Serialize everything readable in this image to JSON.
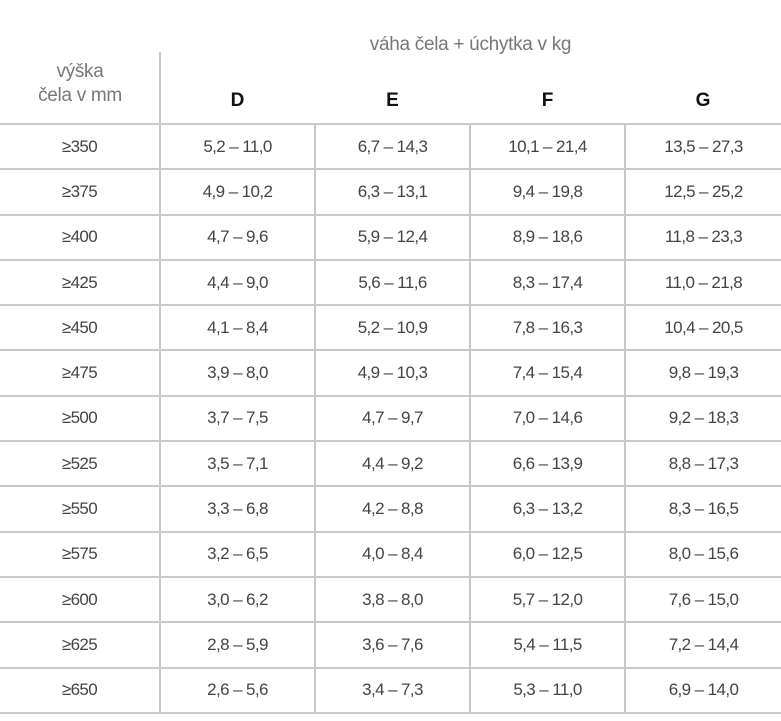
{
  "header": {
    "group_title": "váha čela + úchytka v kg",
    "row_header_line1": "výška",
    "row_header_line2": "čela v mm",
    "columns": [
      "D",
      "E",
      "F",
      "G"
    ]
  },
  "rows": [
    {
      "height": "≥350",
      "values": [
        "5,2 – 11,0",
        "6,7 – 14,3",
        "10,1 – 21,4",
        "13,5 – 27,3"
      ]
    },
    {
      "height": "≥375",
      "values": [
        "4,9 – 10,2",
        "6,3 – 13,1",
        "9,4 – 19,8",
        "12,5 – 25,2"
      ]
    },
    {
      "height": "≥400",
      "values": [
        "4,7 – 9,6",
        "5,9 – 12,4",
        "8,9 – 18,6",
        "11,8 – 23,3"
      ]
    },
    {
      "height": "≥425",
      "values": [
        "4,4 – 9,0",
        "5,6 – 11,6",
        "8,3 – 17,4",
        "11,0 – 21,8"
      ]
    },
    {
      "height": "≥450",
      "values": [
        "4,1 – 8,4",
        "5,2 – 10,9",
        "7,8 – 16,3",
        "10,4 – 20,5"
      ]
    },
    {
      "height": "≥475",
      "values": [
        "3,9 – 8,0",
        "4,9 – 10,3",
        "7,4 – 15,4",
        "9,8 – 19,3"
      ]
    },
    {
      "height": "≥500",
      "values": [
        "3,7 – 7,5",
        "4,7 – 9,7",
        "7,0 – 14,6",
        "9,2 – 18,3"
      ]
    },
    {
      "height": "≥525",
      "values": [
        "3,5 – 7,1",
        "4,4 – 9,2",
        "6,6 – 13,9",
        "8,8 – 17,3"
      ]
    },
    {
      "height": "≥550",
      "values": [
        "3,3 – 6,8",
        "4,2 – 8,8",
        "6,3 – 13,2",
        "8,3 – 16,5"
      ]
    },
    {
      "height": "≥575",
      "values": [
        "3,2 – 6,5",
        "4,0 – 8,4",
        "6,0 – 12,5",
        "8,0 – 15,6"
      ]
    },
    {
      "height": "≥600",
      "values": [
        "3,0 – 6,2",
        "3,8 – 8,0",
        "5,7 – 12,0",
        "7,6 – 15,0"
      ]
    },
    {
      "height": "≥625",
      "values": [
        "2,8 – 5,9",
        "3,6 – 7,6",
        "5,4 – 11,5",
        "7,2 – 14,4"
      ]
    },
    {
      "height": "≥650",
      "values": [
        "2,6 – 5,6",
        "3,4 – 7,3",
        "5,3 – 11,0",
        "6,9 – 14,0"
      ]
    }
  ]
}
